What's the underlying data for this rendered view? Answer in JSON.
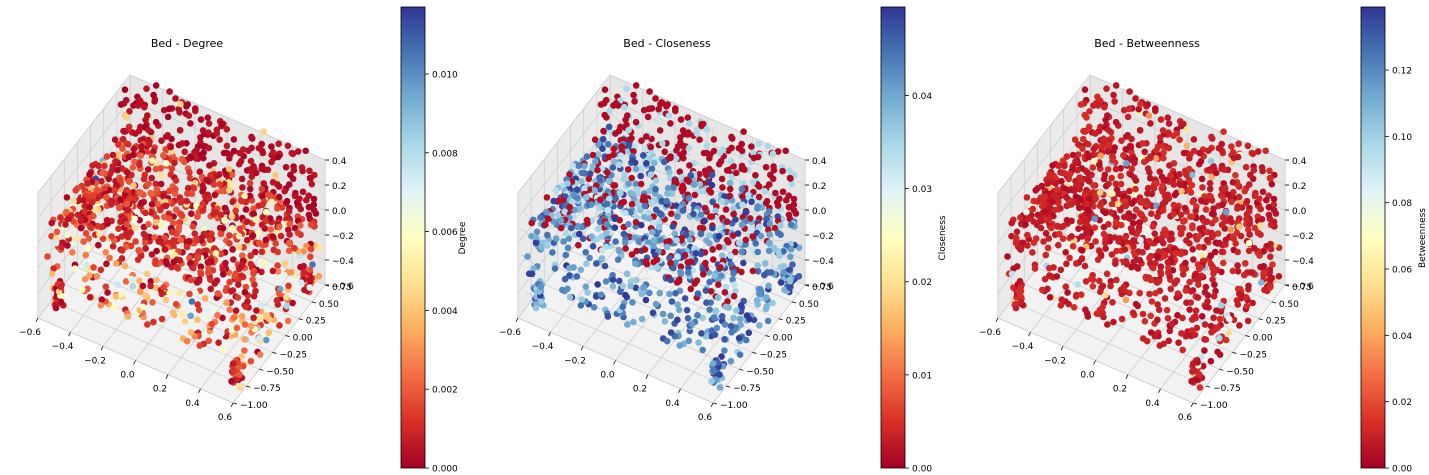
{
  "chart_data": [
    {
      "type": "scatter",
      "projection": "3d",
      "title": "Bed - Degree",
      "colorbar_label": "Degree",
      "colormap": "RdYlBu",
      "color_range": [
        0.0,
        0.0117
      ],
      "colorbar_ticks": [
        "0.000",
        "0.002",
        "0.004",
        "0.006",
        "0.008",
        "0.010"
      ],
      "x_ticks": [
        "−0.6",
        "−0.4",
        "−0.2",
        "0.0",
        "0.2",
        "0.4",
        "0.6"
      ],
      "y_ticks": [
        "−1.00",
        "−0.75",
        "−0.50",
        "−0.25",
        "0.00",
        "0.25",
        "0.50",
        "0.75"
      ],
      "z_ticks": [
        "−0.6",
        "−0.4",
        "−0.2",
        "0.0",
        "0.2",
        "0.4"
      ],
      "xlim": [
        -0.7,
        0.7
      ],
      "ylim": [
        -1.05,
        0.85
      ],
      "zlim": [
        -0.65,
        0.55
      ],
      "grid": true
    },
    {
      "type": "scatter",
      "projection": "3d",
      "title": "Bed - Closeness",
      "colorbar_label": "Closeness",
      "colormap": "RdYlBu",
      "color_range": [
        0.0,
        0.0495
      ],
      "colorbar_ticks": [
        "0.00",
        "0.01",
        "0.02",
        "0.03",
        "0.04"
      ],
      "x_ticks": [
        "−0.6",
        "−0.4",
        "−0.2",
        "0.0",
        "0.2",
        "0.4",
        "0.6"
      ],
      "y_ticks": [
        "−1.00",
        "−0.75",
        "−0.50",
        "−0.25",
        "0.00",
        "0.25",
        "0.50",
        "0.75"
      ],
      "z_ticks": [
        "−0.6",
        "−0.4",
        "−0.2",
        "0.0",
        "0.2",
        "0.4"
      ],
      "xlim": [
        -0.7,
        0.7
      ],
      "ylim": [
        -1.05,
        0.85
      ],
      "zlim": [
        -0.65,
        0.55
      ],
      "grid": true
    },
    {
      "type": "scatter",
      "projection": "3d",
      "title": "Bed - Betweenness",
      "colorbar_label": "Betweenness",
      "colormap": "RdYlBu",
      "color_range": [
        0.0,
        0.139
      ],
      "colorbar_ticks": [
        "0.00",
        "0.02",
        "0.04",
        "0.06",
        "0.08",
        "0.10",
        "0.12"
      ],
      "x_ticks": [
        "−0.6",
        "−0.4",
        "−0.2",
        "0.0",
        "0.2",
        "0.4",
        "0.6"
      ],
      "y_ticks": [
        "−1.00",
        "−0.75",
        "−0.50",
        "−0.25",
        "0.00",
        "0.25",
        "0.50",
        "0.75"
      ],
      "z_ticks": [
        "−0.6",
        "−0.4",
        "−0.2",
        "0.0",
        "0.2",
        "0.4"
      ],
      "xlim": [
        -0.7,
        0.7
      ],
      "ylim": [
        -1.05,
        0.85
      ],
      "zlim": [
        -0.65,
        0.55
      ],
      "grid": true
    }
  ]
}
